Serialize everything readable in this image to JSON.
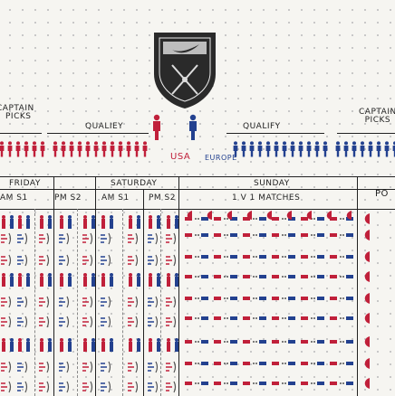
{
  "header": {
    "captain_picks_left_line1": "CAPTAIN",
    "captain_picks_left_line2": "PICKS",
    "qualify_left": "QUALIEY",
    "qualify_right": "QUALIFY",
    "captain_picks_right_line1": "CAPTAIN",
    "captain_picks_right_line2": "PICKS",
    "team_usa": "USA",
    "team_europe": "EUROPE"
  },
  "schedule": {
    "days": [
      "FRIDAY",
      "SATURDAY",
      "SUNDAY"
    ],
    "sessions": [
      "AM S1",
      "PM S2",
      "AM S1",
      "PM S2",
      "1 V 1 MATCHES"
    ],
    "right_fragment": "Po"
  },
  "colors": {
    "usa": "#c0203a",
    "europe": "#23418f",
    "ink": "#222222",
    "paper": "#f6f5f1"
  },
  "icons": {
    "crest": "shield-crossed-clubs-icon",
    "figure": "golfer-figure-icon",
    "player_red": "golfer-red-icon",
    "player_blue": "golfer-blue-icon"
  }
}
